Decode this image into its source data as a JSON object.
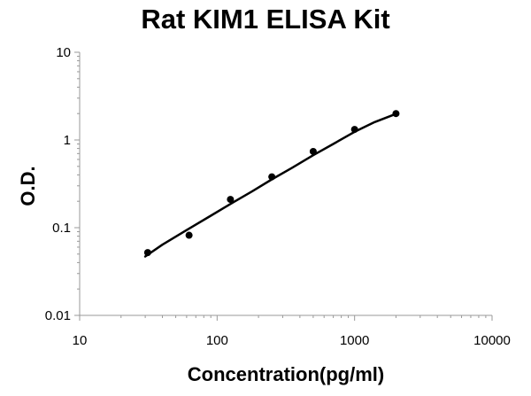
{
  "chart_data": {
    "type": "scatter",
    "title": "Rat KIM1 ELISA Kit",
    "xlabel": "Concentration(pg/ml)",
    "ylabel": "O.D.",
    "xscale": "log",
    "yscale": "log",
    "xlim": [
      10,
      10000
    ],
    "ylim": [
      0.01,
      10
    ],
    "x_ticks": [
      "10",
      "100",
      "1000",
      "10000"
    ],
    "y_ticks": [
      "0.01",
      "0.1",
      "1",
      "10"
    ],
    "grid": false,
    "legend": "none",
    "series": [
      {
        "x": [
          31.25,
          62.5,
          125,
          250,
          500,
          1000,
          2000
        ],
        "y": [
          0.052,
          0.082,
          0.21,
          0.38,
          0.74,
          1.32,
          2.0
        ]
      }
    ],
    "fit_curve": {
      "x": [
        30,
        40,
        60,
        90,
        130,
        180,
        250,
        350,
        500,
        700,
        1000,
        1400,
        2000
      ],
      "y": [
        0.047,
        0.064,
        0.094,
        0.137,
        0.193,
        0.26,
        0.355,
        0.48,
        0.67,
        0.9,
        1.24,
        1.6,
        1.98
      ]
    },
    "marker_color": "#000000",
    "line_color": "#000000"
  }
}
